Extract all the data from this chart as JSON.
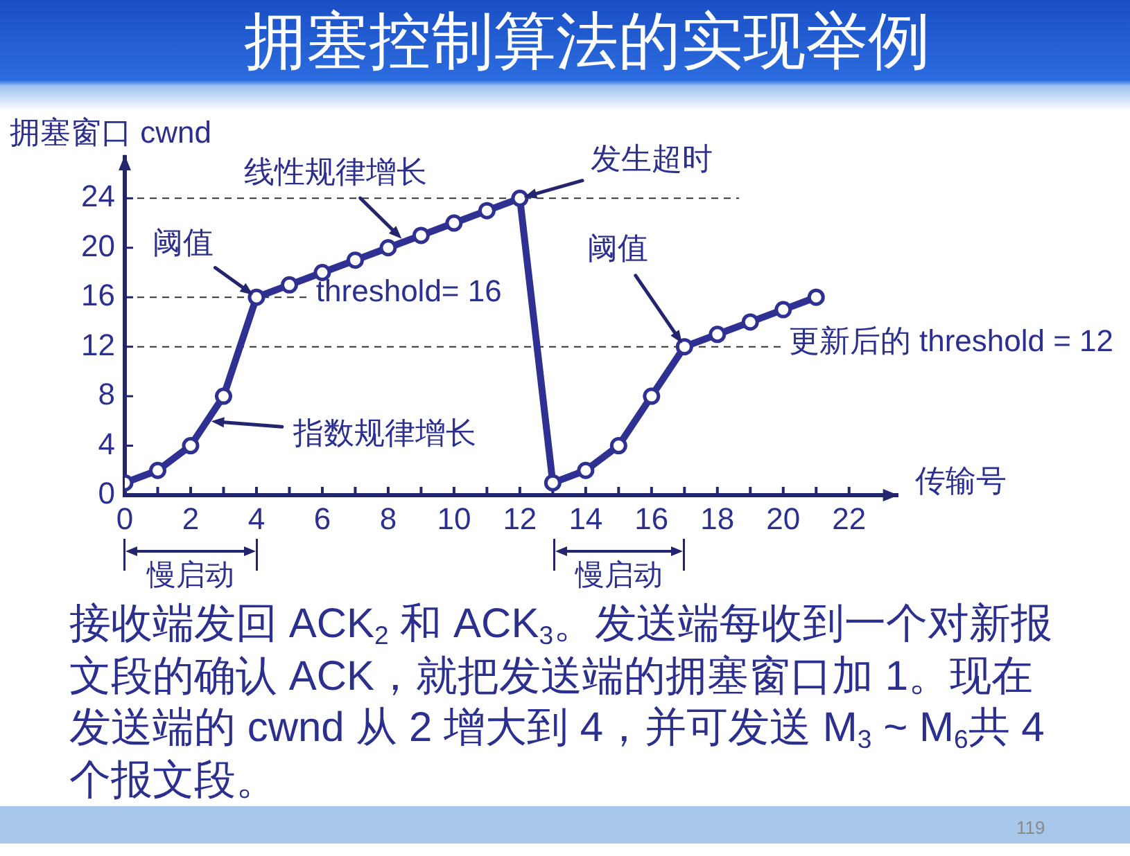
{
  "chart_data": {
    "type": "line",
    "title": "拥塞控制算法的实现举例",
    "xlabel": "传输号",
    "ylabel": "拥塞窗口 cwnd",
    "x": [
      0,
      1,
      2,
      3,
      4,
      5,
      6,
      7,
      8,
      9,
      10,
      11,
      12,
      13,
      14,
      15,
      16,
      17,
      18,
      19,
      20,
      21
    ],
    "values": [
      1,
      2,
      4,
      8,
      16,
      17,
      18,
      19,
      20,
      21,
      22,
      23,
      24,
      1,
      2,
      4,
      8,
      12,
      13,
      14,
      15,
      16
    ],
    "color": "#2e3192",
    "marker": "circle",
    "grid": false,
    "legend": false,
    "xlim": [
      0,
      23.5
    ],
    "ylim": [
      0,
      27.5
    ],
    "xticks": [
      0,
      {
        "value": 1,
        "label": null
      },
      2,
      {
        "value": 3,
        "label": null
      },
      4,
      {
        "value": 5,
        "label": null
      },
      6,
      {
        "value": 7,
        "label": null
      },
      8,
      {
        "value": 9,
        "label": null
      },
      10,
      {
        "value": 11,
        "label": null
      },
      12,
      {
        "value": 13,
        "label": null
      },
      14,
      {
        "value": 15,
        "label": null
      },
      16,
      {
        "value": 17,
        "label": null
      },
      18,
      {
        "value": 19,
        "label": null
      },
      20,
      {
        "value": 21,
        "label": null
      },
      22
    ],
    "yticks": [
      0,
      4,
      8,
      12,
      16,
      20,
      24
    ],
    "ref_lines": [
      {
        "axis": "y",
        "value": 24,
        "color": "#333333",
        "line_style": "dashed"
      },
      {
        "axis": "y",
        "value": 16,
        "label": "threshold= 16",
        "color": "#333333",
        "line_style": "dashed"
      },
      {
        "axis": "y",
        "value": 12,
        "label": "更新后的 threshold = 12",
        "color": "#333333",
        "line_style": "dashed"
      }
    ],
    "annotations": [
      {
        "text": "阈值",
        "x": 4,
        "y": 16
      },
      {
        "text": "线性规律增长",
        "x": 8.5,
        "y": 20.5
      },
      {
        "text": "指数规律增长",
        "x": 2.5,
        "y": 6
      },
      {
        "text": "发生超时",
        "x": 12,
        "y": 24
      },
      {
        "text": "阈值",
        "x": 17,
        "y": 12
      },
      "慢启动",
      "慢启动",
      "接收端发回 ACK$_{2}$ 和 ACK$_{3}$。发送端每收到一个对新报文段的确认 ACK，就把发送端的拥塞窗口加 1。现在发送端的 cwnd 从 2 增大到 4，并可发送 M$_{3}$ ~ M$_{6}$共 4 个报文段。",
      "119"
    ]
  }
}
